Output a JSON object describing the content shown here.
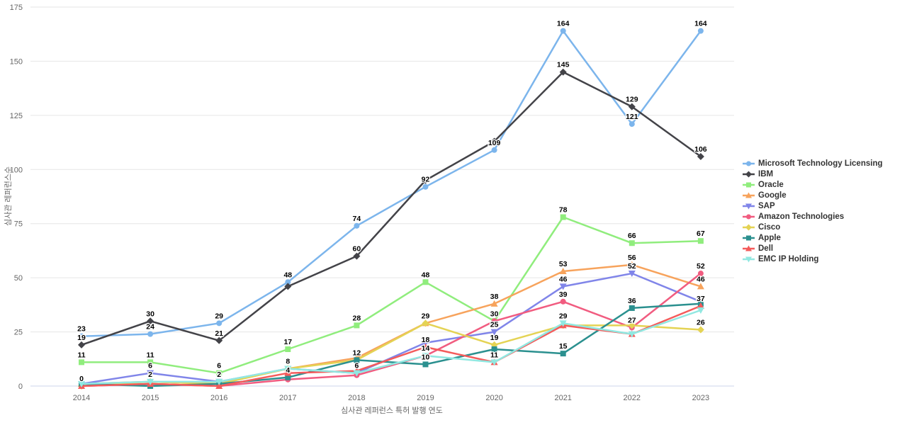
{
  "chart_data": {
    "type": "line",
    "title": "",
    "xlabel": "심사관 레퍼런스 특허 발행 연도",
    "ylabel": "심사관 레퍼런스수",
    "x": [
      2014,
      2015,
      2016,
      2017,
      2018,
      2019,
      2020,
      2021,
      2022,
      2023
    ],
    "ylim": [
      0,
      175
    ],
    "yticks": [
      0,
      25,
      50,
      75,
      100,
      125,
      150,
      175
    ],
    "grid": true,
    "legend_position": "right",
    "grid_color": "#e6e6e6",
    "axis_line_color": "#ccd6eb",
    "series": [
      {
        "name": "Microsoft Technology Licensing",
        "color": "#7cb5ec",
        "marker": "circle",
        "values": [
          23,
          24,
          29,
          48,
          74,
          92,
          109,
          164,
          121,
          164
        ],
        "label_mask": [
          1,
          1,
          1,
          1,
          1,
          1,
          1,
          1,
          1,
          1
        ]
      },
      {
        "name": "IBM",
        "color": "#434348",
        "marker": "diamond",
        "values": [
          19,
          30,
          21,
          46,
          60,
          95,
          113,
          145,
          129,
          106
        ],
        "label_mask": [
          1,
          1,
          1,
          0,
          1,
          0,
          0,
          1,
          1,
          1
        ]
      },
      {
        "name": "Oracle",
        "color": "#90ed7d",
        "marker": "square",
        "values": [
          11,
          11,
          6,
          17,
          28,
          48,
          30,
          78,
          66,
          67
        ],
        "label_mask": [
          1,
          1,
          1,
          1,
          1,
          1,
          1,
          1,
          1,
          1
        ]
      },
      {
        "name": "Google",
        "color": "#f7a35c",
        "marker": "triangle",
        "values": [
          1,
          2,
          1,
          8,
          13,
          29,
          38,
          53,
          56,
          46
        ],
        "label_mask": [
          0,
          0,
          0,
          0,
          0,
          1,
          1,
          1,
          1,
          1
        ]
      },
      {
        "name": "SAP",
        "color": "#8085e9",
        "marker": "triangle-down",
        "values": [
          1,
          6,
          2,
          8,
          6,
          20,
          25,
          46,
          52,
          39
        ],
        "label_mask": [
          0,
          1,
          1,
          1,
          0,
          0,
          1,
          1,
          1,
          0
        ]
      },
      {
        "name": "Amazon Technologies",
        "color": "#f15c80",
        "marker": "circle",
        "values": [
          0,
          1,
          0,
          3,
          5,
          14,
          30,
          39,
          27,
          52
        ],
        "label_mask": [
          1,
          0,
          0,
          0,
          0,
          1,
          0,
          1,
          1,
          1
        ]
      },
      {
        "name": "Cisco",
        "color": "#e4d354",
        "marker": "diamond",
        "values": [
          0,
          2,
          1,
          8,
          12,
          29,
          19,
          28,
          28,
          26
        ],
        "label_mask": [
          0,
          1,
          0,
          0,
          0,
          0,
          1,
          0,
          0,
          1
        ]
      },
      {
        "name": "Apple",
        "color": "#2b908f",
        "marker": "square",
        "values": [
          1,
          0,
          1,
          4,
          12,
          10,
          17,
          15,
          36,
          38
        ],
        "label_mask": [
          0,
          0,
          0,
          1,
          1,
          1,
          0,
          1,
          1,
          0
        ]
      },
      {
        "name": "Dell",
        "color": "#f45b5b",
        "marker": "triangle",
        "values": [
          0,
          1,
          0,
          6,
          7,
          18,
          11,
          28,
          24,
          37
        ],
        "label_mask": [
          0,
          0,
          0,
          0,
          0,
          1,
          1,
          0,
          0,
          1
        ]
      },
      {
        "name": "EMC IP Holding",
        "color": "#91e8e1",
        "marker": "triangle-down",
        "values": [
          1,
          2,
          2,
          8,
          6,
          14,
          11,
          29,
          24,
          35
        ],
        "label_mask": [
          0,
          0,
          0,
          0,
          1,
          0,
          0,
          1,
          0,
          0
        ]
      }
    ]
  }
}
